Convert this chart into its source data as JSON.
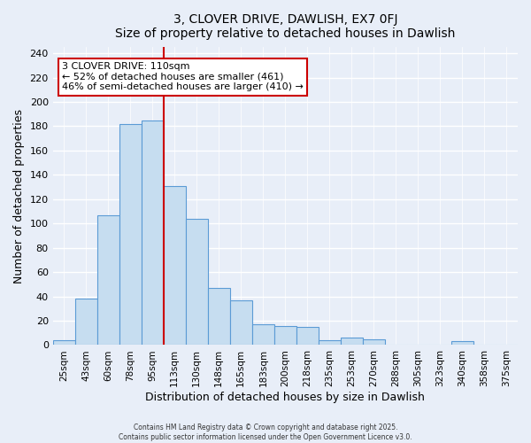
{
  "title": "3, CLOVER DRIVE, DAWLISH, EX7 0FJ",
  "subtitle": "Size of property relative to detached houses in Dawlish",
  "xlabel": "Distribution of detached houses by size in Dawlish",
  "ylabel": "Number of detached properties",
  "bar_labels": [
    "25sqm",
    "43sqm",
    "60sqm",
    "78sqm",
    "95sqm",
    "113sqm",
    "130sqm",
    "148sqm",
    "165sqm",
    "183sqm",
    "200sqm",
    "218sqm",
    "235sqm",
    "253sqm",
    "270sqm",
    "288sqm",
    "305sqm",
    "323sqm",
    "340sqm",
    "358sqm",
    "375sqm"
  ],
  "bar_values": [
    4,
    38,
    107,
    182,
    185,
    131,
    104,
    47,
    37,
    17,
    16,
    15,
    4,
    6,
    5,
    0,
    0,
    0,
    3,
    0,
    0
  ],
  "bar_color": "#c6ddf0",
  "bar_edge_color": "#5b9bd5",
  "vline_color": "#cc0000",
  "annotation_title": "3 CLOVER DRIVE: 110sqm",
  "annotation_line1": "← 52% of detached houses are smaller (461)",
  "annotation_line2": "46% of semi-detached houses are larger (410) →",
  "annotation_box_color": "#ffffff",
  "annotation_box_edge_color": "#cc0000",
  "ylim": [
    0,
    245
  ],
  "yticks": [
    0,
    20,
    40,
    60,
    80,
    100,
    120,
    140,
    160,
    180,
    200,
    220,
    240
  ],
  "footer1": "Contains HM Land Registry data © Crown copyright and database right 2025.",
  "footer2": "Contains public sector information licensed under the Open Government Licence v3.0.",
  "background_color": "#e8eef8",
  "grid_color": "#c8d4e8"
}
